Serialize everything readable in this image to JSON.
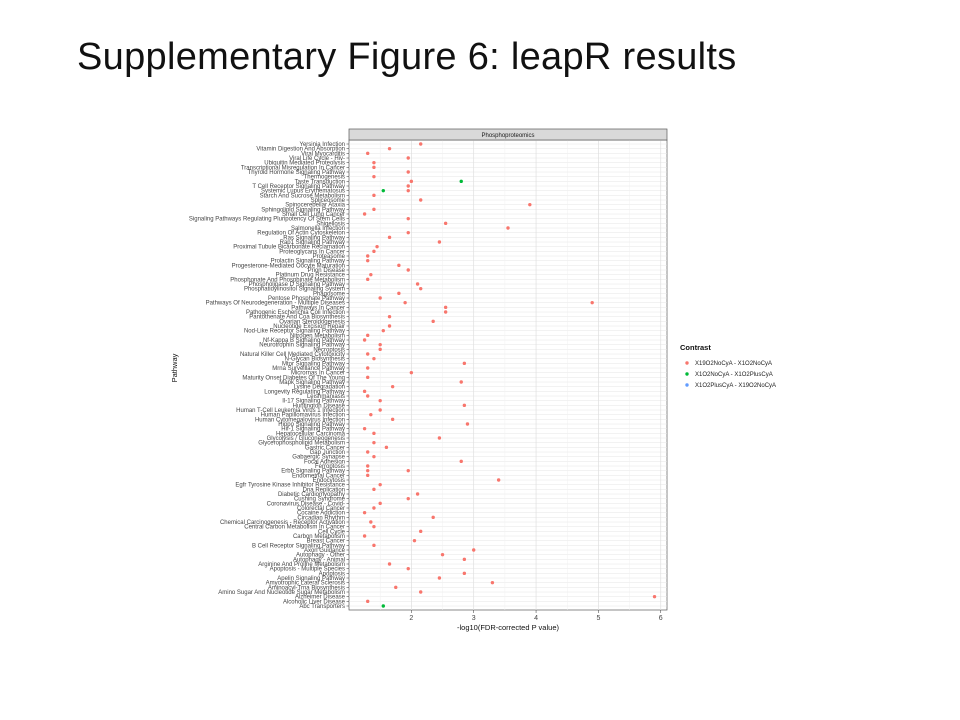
{
  "slide": {
    "title": "Supplementary Figure 6: leapR results"
  },
  "chart_data": {
    "type": "scatter",
    "facet_title": "Phosphoproteomics",
    "xlabel": "-log10(FDR-corrected P value)",
    "ylabel": "Pathway",
    "xlim": [
      1.0,
      6.1
    ],
    "x_ticks": [
      2,
      3,
      4,
      5,
      6
    ],
    "grid": true,
    "legend_title": "Contrast",
    "legend_position": "right",
    "series": [
      {
        "name": "X19O2NoCyA - X1O2NoCyA",
        "color": "#F8766D"
      },
      {
        "name": "X1O2NoCyA - X1O2PlusCyA",
        "color": "#00BA38"
      },
      {
        "name": "X1O2PlusCyA - X19O2NoCyA",
        "color": "#619CFF"
      }
    ],
    "categories": [
      "Yersinia Infection",
      "Vitamin Digestion And Absorption",
      "Viral Myocarditis",
      "Viral Life Cycle - Hiv-",
      "Ubiquitin Mediated Proteolysis",
      "Transcriptional Misregulation In Cancer",
      "Thyroid Hormone Signaling Pathway",
      "Thermogenesis",
      "Taste Transduction",
      "T Cell Receptor Signaling Pathway",
      "Systemic Lupus Erythematosus",
      "Starch And Sucrose Metabolism",
      "Spliceosome",
      "Spinocerebellar Ataxia",
      "Sphingolipid Signaling Pathway",
      "Small Cell Lung Cancer",
      "Signaling Pathways Regulating Pluripotency Of Stem Cells",
      "Shigellosis",
      "Salmonella Infection",
      "Regulation Of Actin Cytoskeleton",
      "Ras Signaling Pathway",
      "Rap1 Signaling Pathway",
      "Proximal Tubule Bicarbonate Reclamation",
      "Proteoglycans In Cancer",
      "Proteasome",
      "Prolactin Signaling Pathway",
      "Progesterone-Mediated Oocyte Maturation",
      "Prion Disease",
      "Platinum Drug Resistance",
      "Phosphonate And Phosphinate Metabolism",
      "Phospholipase D Signaling Pathway",
      "Phosphatidylinositol Signaling System",
      "Phagosome",
      "Pentose Phosphate Pathway",
      "Pathways Of Neurodegeneration - Multiple Diseases",
      "Pathways In Cancer",
      "Pathogenic Escherichia Coli Infection",
      "Pantothenate And Coa Biosynthesis",
      "Ovarian Steroidogenesis",
      "Nucleotide Excision Repair",
      "Nod-Like Receptor Signaling Pathway",
      "Nitrogen Metabolism",
      "Nf-Kappa B Signaling Pathway",
      "Neurotrophin Signaling Pathway",
      "Necroptosis",
      "Natural Killer Cell Mediated Cytotoxicity",
      "N-Glycan Biosynthesis",
      "Mtor Signaling Pathway",
      "Mrna Surveillance Pathway",
      "Micrornas In Cancer",
      "Maturity Onset Diabetes Of The Young",
      "Mapk Signaling Pathway",
      "Lysine Degradation",
      "Longevity Regulating Pathway",
      "Leishmaniasis",
      "Il-17 Signaling Pathway",
      "Huntington Disease",
      "Human T-Cell Leukemia Virus 1 Infection",
      "Human Papillomavirus Infection",
      "Human Cytomegalovirus Infection",
      "Hippo Signaling Pathway",
      "Hif-1 Signaling Pathway",
      "Hepatocellular Carcinoma",
      "Glycolysis / Gluconeogenesis",
      "Glycerophospholipid Metabolism",
      "Gastric Cancer",
      "Gap Junction",
      "Gabaergic Synapse",
      "Focal Adhesion",
      "Ferroptosis",
      "Erbb Signaling Pathway",
      "Endometrial Cancer",
      "Endocytosis",
      "Egfr Tyrosine Kinase Inhibitor Resistance",
      "Dna Replication",
      "Diabetic Cardiomyopathy",
      "Cushing Syndrome",
      "Coronavirus Disease - Covid-",
      "Colorectal Cancer",
      "Cocaine Addiction",
      "Circadian Rhythm",
      "Chemical Carcinogenesis - Receptor Activation",
      "Central Carbon Metabolism In Cancer",
      "Cell Cycle",
      "Carbon Metabolism",
      "Breast Cancer",
      "B Cell Receptor Signaling Pathway",
      "Axon Guidance",
      "Autophagy - Other",
      "Autophagy - Animal",
      "Arginine And Proline Metabolism",
      "Apoptosis - Multiple Species",
      "Apoptosis",
      "Apelin Signaling Pathway",
      "Amyotrophic Lateral Sclerosis",
      "Aminoacyl-Trna Biosynthesis",
      "Amino Sugar And Nucleotide Sugar Metabolism",
      "Alzheimer Disease",
      "Alcoholic Liver Disease",
      "Abc Transporters"
    ],
    "points": [
      {
        "c": "Yersinia Infection",
        "x": 2.15,
        "s": 0
      },
      {
        "c": "Vitamin Digestion And Absorption",
        "x": 1.65,
        "s": 0
      },
      {
        "c": "Viral Myocarditis",
        "x": 1.3,
        "s": 0
      },
      {
        "c": "Viral Life Cycle - Hiv-",
        "x": 1.95,
        "s": 0
      },
      {
        "c": "Ubiquitin Mediated Proteolysis",
        "x": 1.4,
        "s": 0
      },
      {
        "c": "Transcriptional Misregulation In Cancer",
        "x": 1.4,
        "s": 0
      },
      {
        "c": "Thyroid Hormone Signaling Pathway",
        "x": 1.95,
        "s": 0
      },
      {
        "c": "Thermogenesis",
        "x": 1.4,
        "s": 0
      },
      {
        "c": "Taste Transduction",
        "x": 2.0,
        "s": 0
      },
      {
        "c": "Taste Transduction",
        "x": 2.8,
        "s": 1
      },
      {
        "c": "T Cell Receptor Signaling Pathway",
        "x": 1.95,
        "s": 0
      },
      {
        "c": "Systemic Lupus Erythematosus",
        "x": 1.95,
        "s": 0
      },
      {
        "c": "Systemic Lupus Erythematosus",
        "x": 1.55,
        "s": 1
      },
      {
        "c": "Starch And Sucrose Metabolism",
        "x": 1.4,
        "s": 0
      },
      {
        "c": "Spliceosome",
        "x": 2.15,
        "s": 0
      },
      {
        "c": "Spinocerebellar Ataxia",
        "x": 3.9,
        "s": 0
      },
      {
        "c": "Sphingolipid Signaling Pathway",
        "x": 1.4,
        "s": 0
      },
      {
        "c": "Small Cell Lung Cancer",
        "x": 1.25,
        "s": 0
      },
      {
        "c": "Signaling Pathways Regulating Pluripotency Of Stem Cells",
        "x": 1.95,
        "s": 0
      },
      {
        "c": "Shigellosis",
        "x": 2.55,
        "s": 0
      },
      {
        "c": "Salmonella Infection",
        "x": 3.55,
        "s": 0
      },
      {
        "c": "Regulation Of Actin Cytoskeleton",
        "x": 1.95,
        "s": 0
      },
      {
        "c": "Ras Signaling Pathway",
        "x": 1.65,
        "s": 0
      },
      {
        "c": "Rap1 Signaling Pathway",
        "x": 2.45,
        "s": 0
      },
      {
        "c": "Proximal Tubule Bicarbonate Reclamation",
        "x": 1.45,
        "s": 0
      },
      {
        "c": "Proteoglycans In Cancer",
        "x": 1.4,
        "s": 0
      },
      {
        "c": "Proteasome",
        "x": 1.3,
        "s": 0
      },
      {
        "c": "Prolactin Signaling Pathway",
        "x": 1.3,
        "s": 0
      },
      {
        "c": "Progesterone-Mediated Oocyte Maturation",
        "x": 1.8,
        "s": 0
      },
      {
        "c": "Prion Disease",
        "x": 1.95,
        "s": 0
      },
      {
        "c": "Platinum Drug Resistance",
        "x": 1.35,
        "s": 0
      },
      {
        "c": "Phosphonate And Phosphinate Metabolism",
        "x": 1.3,
        "s": 0
      },
      {
        "c": "Phospholipase D Signaling Pathway",
        "x": 2.1,
        "s": 0
      },
      {
        "c": "Phosphatidylinositol Signaling System",
        "x": 2.15,
        "s": 0
      },
      {
        "c": "Phagosome",
        "x": 1.8,
        "s": 0
      },
      {
        "c": "Pentose Phosphate Pathway",
        "x": 1.5,
        "s": 0
      },
      {
        "c": "Pathways Of Neurodegeneration - Multiple Diseases",
        "x": 1.9,
        "s": 0
      },
      {
        "c": "Pathways Of Neurodegeneration - Multiple Diseases",
        "x": 4.9,
        "s": 0
      },
      {
        "c": "Pathways In Cancer",
        "x": 2.55,
        "s": 0
      },
      {
        "c": "Pathogenic Escherichia Coli Infection",
        "x": 2.55,
        "s": 0
      },
      {
        "c": "Pantothenate And Coa Biosynthesis",
        "x": 1.65,
        "s": 0
      },
      {
        "c": "Ovarian Steroidogenesis",
        "x": 2.35,
        "s": 0
      },
      {
        "c": "Nucleotide Excision Repair",
        "x": 1.65,
        "s": 0
      },
      {
        "c": "Nod-Like Receptor Signaling Pathway",
        "x": 1.55,
        "s": 0
      },
      {
        "c": "Nitrogen Metabolism",
        "x": 1.3,
        "s": 0
      },
      {
        "c": "Nf-Kappa B Signaling Pathway",
        "x": 1.25,
        "s": 0
      },
      {
        "c": "Neurotrophin Signaling Pathway",
        "x": 1.5,
        "s": 0
      },
      {
        "c": "Necroptosis",
        "x": 1.5,
        "s": 0
      },
      {
        "c": "Natural Killer Cell Mediated Cytotoxicity",
        "x": 1.3,
        "s": 0
      },
      {
        "c": "N-Glycan Biosynthesis",
        "x": 1.4,
        "s": 0
      },
      {
        "c": "Mtor Signaling Pathway",
        "x": 2.85,
        "s": 0
      },
      {
        "c": "Mrna Surveillance Pathway",
        "x": 1.3,
        "s": 0
      },
      {
        "c": "Micrornas In Cancer",
        "x": 2.0,
        "s": 0
      },
      {
        "c": "Maturity Onset Diabetes Of The Young",
        "x": 1.3,
        "s": 0
      },
      {
        "c": "Mapk Signaling Pathway",
        "x": 2.8,
        "s": 0
      },
      {
        "c": "Lysine Degradation",
        "x": 1.7,
        "s": 0
      },
      {
        "c": "Longevity Regulating Pathway",
        "x": 1.25,
        "s": 0
      },
      {
        "c": "Leishmaniasis",
        "x": 1.3,
        "s": 0
      },
      {
        "c": "Il-17 Signaling Pathway",
        "x": 1.5,
        "s": 0
      },
      {
        "c": "Huntington Disease",
        "x": 2.85,
        "s": 0
      },
      {
        "c": "Human T-Cell Leukemia Virus 1 Infection",
        "x": 1.5,
        "s": 0
      },
      {
        "c": "Human Papillomavirus Infection",
        "x": 1.35,
        "s": 0
      },
      {
        "c": "Human Cytomegalovirus Infection",
        "x": 1.7,
        "s": 0
      },
      {
        "c": "Hippo Signaling Pathway",
        "x": 2.9,
        "s": 0
      },
      {
        "c": "Hif-1 Signaling Pathway",
        "x": 1.25,
        "s": 0
      },
      {
        "c": "Hepatocellular Carcinoma",
        "x": 1.4,
        "s": 0
      },
      {
        "c": "Glycolysis / Gluconeogenesis",
        "x": 2.45,
        "s": 0
      },
      {
        "c": "Glycerophospholipid Metabolism",
        "x": 1.4,
        "s": 0
      },
      {
        "c": "Gastric Cancer",
        "x": 1.6,
        "s": 0
      },
      {
        "c": "Gap Junction",
        "x": 1.3,
        "s": 0
      },
      {
        "c": "Gabaergic Synapse",
        "x": 1.4,
        "s": 0
      },
      {
        "c": "Focal Adhesion",
        "x": 2.8,
        "s": 0
      },
      {
        "c": "Ferroptosis",
        "x": 1.3,
        "s": 0
      },
      {
        "c": "Erbb Signaling Pathway",
        "x": 1.3,
        "s": 0
      },
      {
        "c": "Erbb Signaling Pathway",
        "x": 1.95,
        "s": 0
      },
      {
        "c": "Endometrial Cancer",
        "x": 1.3,
        "s": 0
      },
      {
        "c": "Endocytosis",
        "x": 3.4,
        "s": 0
      },
      {
        "c": "Egfr Tyrosine Kinase Inhibitor Resistance",
        "x": 1.5,
        "s": 0
      },
      {
        "c": "Dna Replication",
        "x": 1.4,
        "s": 0
      },
      {
        "c": "Diabetic Cardiomyopathy",
        "x": 2.1,
        "s": 0
      },
      {
        "c": "Cushing Syndrome",
        "x": 1.95,
        "s": 0
      },
      {
        "c": "Coronavirus Disease - Covid-",
        "x": 1.5,
        "s": 0
      },
      {
        "c": "Colorectal Cancer",
        "x": 1.4,
        "s": 0
      },
      {
        "c": "Cocaine Addiction",
        "x": 1.25,
        "s": 0
      },
      {
        "c": "Circadian Rhythm",
        "x": 2.35,
        "s": 0
      },
      {
        "c": "Chemical Carcinogenesis - Receptor Activation",
        "x": 1.35,
        "s": 0
      },
      {
        "c": "Central Carbon Metabolism In Cancer",
        "x": 1.4,
        "s": 0
      },
      {
        "c": "Cell Cycle",
        "x": 2.15,
        "s": 0
      },
      {
        "c": "Carbon Metabolism",
        "x": 1.25,
        "s": 0
      },
      {
        "c": "Breast Cancer",
        "x": 2.05,
        "s": 0
      },
      {
        "c": "B Cell Receptor Signaling Pathway",
        "x": 1.4,
        "s": 0
      },
      {
        "c": "Axon Guidance",
        "x": 3.0,
        "s": 0
      },
      {
        "c": "Autophagy - Other",
        "x": 2.5,
        "s": 0
      },
      {
        "c": "Autophagy - Animal",
        "x": 2.85,
        "s": 0
      },
      {
        "c": "Arginine And Proline Metabolism",
        "x": 1.65,
        "s": 0
      },
      {
        "c": "Apoptosis - Multiple Species",
        "x": 1.95,
        "s": 0
      },
      {
        "c": "Apoptosis",
        "x": 2.85,
        "s": 0
      },
      {
        "c": "Apelin Signaling Pathway",
        "x": 2.45,
        "s": 0
      },
      {
        "c": "Amyotrophic Lateral Sclerosis",
        "x": 3.3,
        "s": 0
      },
      {
        "c": "Aminoacyl-Trna Biosynthesis",
        "x": 1.75,
        "s": 0
      },
      {
        "c": "Amino Sugar And Nucleotide Sugar Metabolism",
        "x": 2.15,
        "s": 0
      },
      {
        "c": "Alzheimer Disease",
        "x": 5.9,
        "s": 0
      },
      {
        "c": "Alcoholic Liver Disease",
        "x": 1.3,
        "s": 0
      },
      {
        "c": "Abc Transporters",
        "x": 1.55,
        "s": 1
      }
    ]
  }
}
